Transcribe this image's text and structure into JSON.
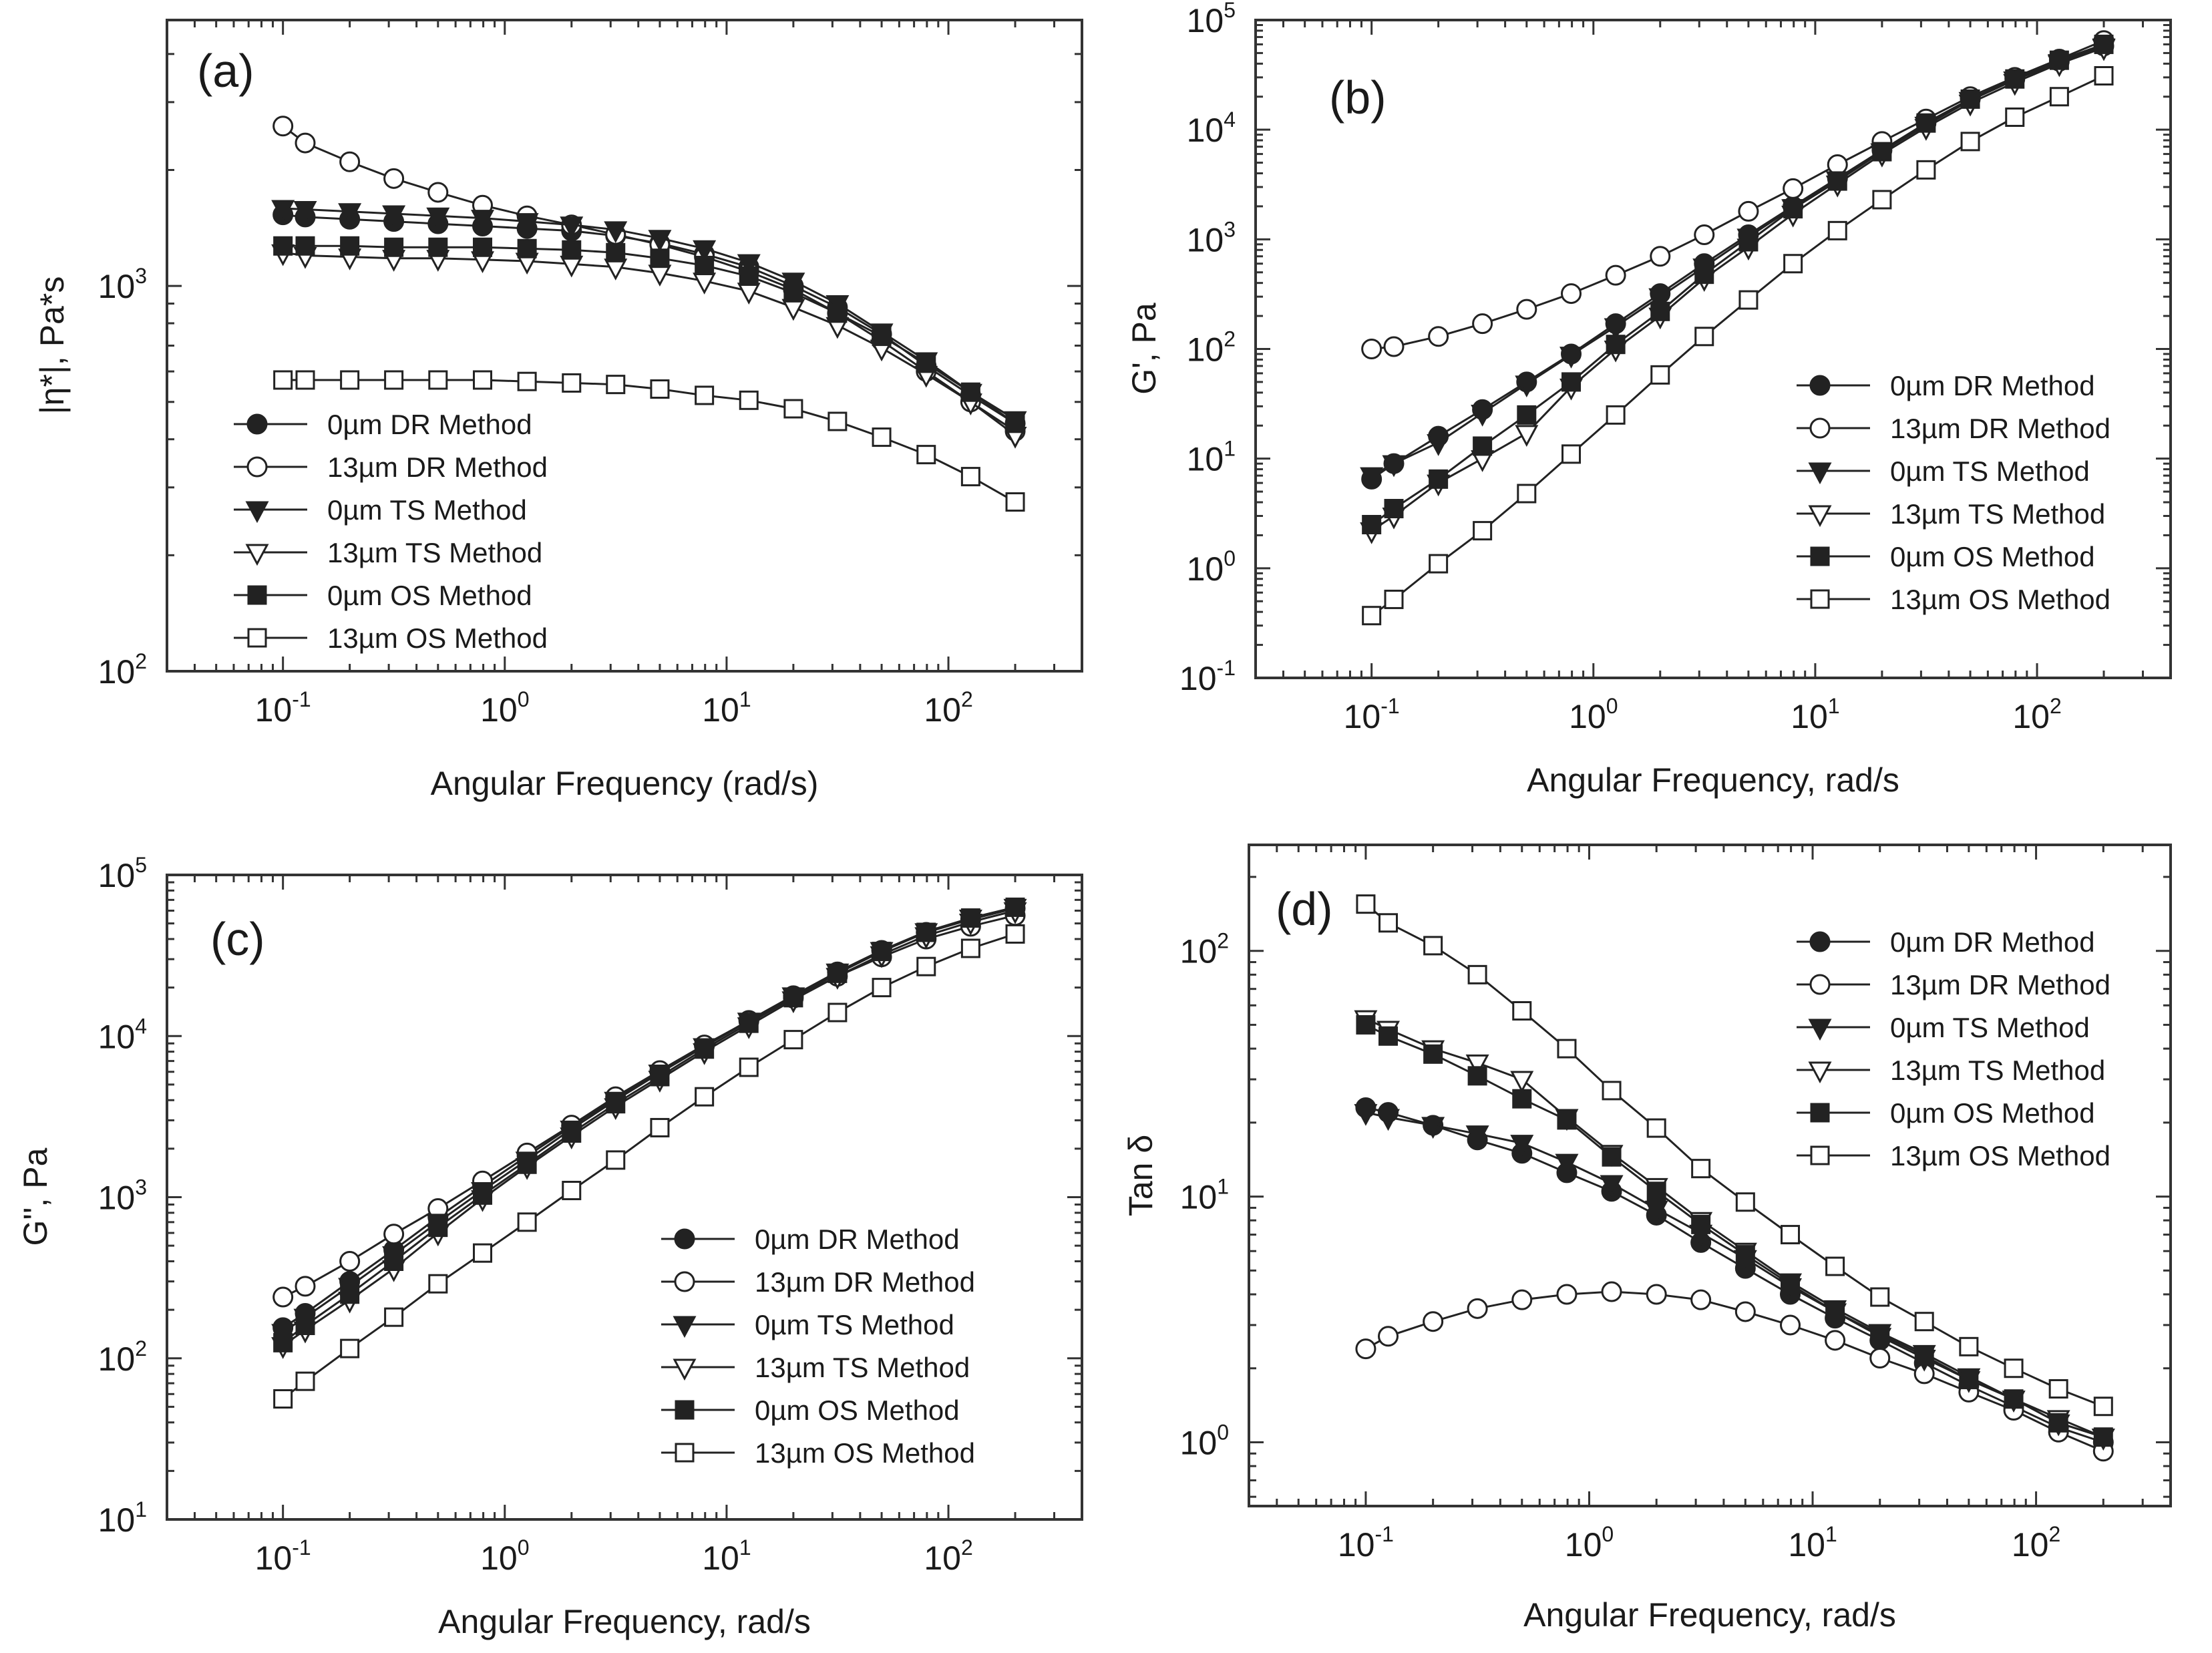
{
  "legend_labels": [
    "0µm DR Method",
    "13µm DR Method",
    "0µm TS Method",
    "13µm TS Method",
    "0µm OS Method",
    "13µm OS Method"
  ],
  "series_markers": [
    "circle-filled",
    "circle-open",
    "triangle-down-filled",
    "triangle-down-open",
    "square-filled",
    "square-open"
  ],
  "colors": {
    "ink": "#222222",
    "frame": "#333333",
    "background": "#ffffff",
    "open_fill": "#ffffff"
  },
  "chart_data": [
    {
      "type": "line",
      "panel": "(a)",
      "xscale": "log",
      "yscale": "log",
      "xlabel": "Angular Frequency (rad/s)",
      "ylabel": "|η*|, Pa*s",
      "xlim": [
        0.03,
        400
      ],
      "ylim": [
        100,
        4900
      ],
      "xticks": [
        {
          "base": "10",
          "exp": "-1",
          "value": 0.1
        },
        {
          "base": "10",
          "exp": "0",
          "value": 1
        },
        {
          "base": "10",
          "exp": "1",
          "value": 10
        },
        {
          "base": "10",
          "exp": "2",
          "value": 100
        }
      ],
      "yticks": [
        {
          "base": "10",
          "exp": "2",
          "value": 100
        },
        {
          "base": "10",
          "exp": "3",
          "value": 1000
        }
      ],
      "x": [
        0.1,
        0.126,
        0.2,
        0.316,
        0.5,
        0.794,
        1.26,
        2,
        3.16,
        5,
        7.94,
        12.6,
        20,
        31.6,
        50,
        79.4,
        126,
        200
      ],
      "series": [
        {
          "name": "0µm DR Method",
          "values": [
            1530,
            1510,
            1490,
            1470,
            1450,
            1430,
            1410,
            1390,
            1350,
            1290,
            1210,
            1120,
            1000,
            880,
            750,
            620,
            520,
            440
          ]
        },
        {
          "name": "13µm DR Method",
          "values": [
            2600,
            2350,
            2100,
            1900,
            1750,
            1620,
            1520,
            1440,
            1360,
            1280,
            1190,
            1090,
            980,
            850,
            720,
            600,
            500,
            420
          ]
        },
        {
          "name": "0µm TS Method",
          "values": [
            1590,
            1580,
            1560,
            1540,
            1520,
            1500,
            1470,
            1440,
            1400,
            1330,
            1250,
            1150,
            1030,
            900,
            760,
            640,
            530,
            450
          ]
        },
        {
          "name": "13µm TS Method",
          "values": [
            1220,
            1200,
            1190,
            1180,
            1180,
            1170,
            1160,
            1140,
            1120,
            1080,
            1030,
            970,
            880,
            790,
            690,
            590,
            500,
            410
          ]
        },
        {
          "name": "0µm OS Method",
          "values": [
            1270,
            1270,
            1270,
            1260,
            1260,
            1260,
            1250,
            1240,
            1220,
            1180,
            1130,
            1060,
            960,
            850,
            740,
            630,
            530,
            440
          ]
        },
        {
          "name": "13µm OS Method",
          "values": [
            570,
            570,
            570,
            570,
            570,
            570,
            565,
            560,
            555,
            540,
            520,
            505,
            480,
            445,
            405,
            365,
            320,
            275
          ]
        }
      ]
    },
    {
      "type": "line",
      "panel": "(b)",
      "xscale": "log",
      "yscale": "log",
      "xlabel": "Angular Frequency, rad/s",
      "ylabel": "G', Pa",
      "xlim": [
        0.03,
        400
      ],
      "ylim": [
        0.1,
        100000
      ],
      "xticks": [
        {
          "base": "10",
          "exp": "-1",
          "value": 0.1
        },
        {
          "base": "10",
          "exp": "0",
          "value": 1
        },
        {
          "base": "10",
          "exp": "1",
          "value": 10
        },
        {
          "base": "10",
          "exp": "2",
          "value": 100
        }
      ],
      "yticks": [
        {
          "base": "10",
          "exp": "-1",
          "value": 0.1
        },
        {
          "base": "10",
          "exp": "0",
          "value": 1
        },
        {
          "base": "10",
          "exp": "1",
          "value": 10
        },
        {
          "base": "10",
          "exp": "2",
          "value": 100
        },
        {
          "base": "10",
          "exp": "3",
          "value": 1000
        },
        {
          "base": "10",
          "exp": "4",
          "value": 10000
        },
        {
          "base": "10",
          "exp": "5",
          "value": 100000
        }
      ],
      "x": [
        0.1,
        0.126,
        0.2,
        0.316,
        0.5,
        0.794,
        1.26,
        2,
        3.16,
        5,
        7.94,
        12.6,
        20,
        31.6,
        50,
        79.4,
        126,
        200
      ],
      "series": [
        {
          "name": "0µm DR Method",
          "values": [
            6.5,
            9,
            16,
            28,
            50,
            90,
            170,
            320,
            600,
            1100,
            2000,
            3600,
            6500,
            11500,
            19000,
            29000,
            42000,
            58000
          ]
        },
        {
          "name": "13µm DR Method",
          "values": [
            100,
            105,
            130,
            170,
            230,
            320,
            470,
            700,
            1100,
            1800,
            2900,
            4800,
            7800,
            12500,
            20000,
            30000,
            44000,
            65000
          ]
        },
        {
          "name": "0µm TS Method",
          "values": [
            7,
            9,
            14,
            26,
            48,
            88,
            160,
            300,
            560,
            1050,
            1950,
            3500,
            6300,
            11000,
            18500,
            28500,
            41000,
            57000
          ]
        },
        {
          "name": "13µm TS Method",
          "values": [
            2.2,
            3,
            6,
            10,
            17,
            45,
            100,
            200,
            440,
            850,
            1700,
            3200,
            6000,
            10500,
            17500,
            27000,
            40000,
            56000
          ]
        },
        {
          "name": "0µm OS Method",
          "values": [
            2.5,
            3.5,
            6.5,
            13,
            25,
            50,
            110,
            220,
            480,
            950,
            1900,
            3400,
            6300,
            11500,
            19000,
            29000,
            43000,
            60000
          ]
        },
        {
          "name": "13µm OS Method",
          "values": [
            0.37,
            0.52,
            1.1,
            2.2,
            4.8,
            11,
            25,
            58,
            130,
            280,
            600,
            1200,
            2300,
            4300,
            7800,
            13000,
            20000,
            31000
          ]
        }
      ]
    },
    {
      "type": "line",
      "panel": "(c)",
      "xscale": "log",
      "yscale": "log",
      "xlabel": "Angular Frequency, rad/s",
      "ylabel": "G'', Pa",
      "xlim": [
        0.03,
        400
      ],
      "ylim": [
        10,
        100000
      ],
      "xticks": [
        {
          "base": "10",
          "exp": "-1",
          "value": 0.1
        },
        {
          "base": "10",
          "exp": "0",
          "value": 1
        },
        {
          "base": "10",
          "exp": "1",
          "value": 10
        },
        {
          "base": "10",
          "exp": "2",
          "value": 100
        }
      ],
      "yticks": [
        {
          "base": "10",
          "exp": "1",
          "value": 10
        },
        {
          "base": "10",
          "exp": "2",
          "value": 100
        },
        {
          "base": "10",
          "exp": "3",
          "value": 1000
        },
        {
          "base": "10",
          "exp": "4",
          "value": 10000
        },
        {
          "base": "10",
          "exp": "5",
          "value": 100000
        }
      ],
      "x": [
        0.1,
        0.126,
        0.2,
        0.316,
        0.5,
        0.794,
        1.26,
        2,
        3.16,
        5,
        7.94,
        12.6,
        20,
        31.6,
        50,
        79.4,
        126,
        200
      ],
      "series": [
        {
          "name": "0µm DR Method",
          "values": [
            155,
            190,
            300,
            470,
            750,
            1170,
            1800,
            2750,
            4100,
            6000,
            8700,
            12500,
            17800,
            25000,
            34000,
            44000,
            53000,
            62000
          ]
        },
        {
          "name": "13µm DR Method",
          "values": [
            240,
            280,
            400,
            590,
            850,
            1260,
            1880,
            2800,
            4200,
            6100,
            8800,
            12400,
            17200,
            23500,
            31000,
            40000,
            48000,
            56000
          ]
        },
        {
          "name": "0µm TS Method",
          "values": [
            145,
            180,
            280,
            440,
            700,
            1100,
            1700,
            2650,
            4000,
            5900,
            8600,
            12400,
            17800,
            25000,
            34000,
            44500,
            54000,
            63000
          ]
        },
        {
          "name": "13µm TS Method",
          "values": [
            120,
            150,
            230,
            360,
            600,
            980,
            1550,
            2400,
            3650,
            5400,
            8000,
            11600,
            16800,
            23500,
            32000,
            42000,
            51000,
            60000
          ]
        },
        {
          "name": "0µm OS Method",
          "values": [
            125,
            160,
            250,
            400,
            650,
            1030,
            1600,
            2500,
            3800,
            5600,
            8300,
            12000,
            17300,
            24500,
            33500,
            44000,
            54000,
            63000
          ]
        },
        {
          "name": "13µm OS Method",
          "values": [
            56,
            72,
            115,
            180,
            290,
            450,
            700,
            1100,
            1700,
            2700,
            4200,
            6400,
            9500,
            14000,
            20000,
            27000,
            35000,
            43000
          ]
        }
      ]
    },
    {
      "type": "line",
      "panel": "(d)",
      "xscale": "log",
      "yscale": "log",
      "xlabel": "Angular Frequency, rad/s",
      "ylabel": "Tan δ",
      "xlim": [
        0.03,
        400
      ],
      "ylim": [
        0.55,
        270
      ],
      "xticks": [
        {
          "base": "10",
          "exp": "-1",
          "value": 0.1
        },
        {
          "base": "10",
          "exp": "0",
          "value": 1
        },
        {
          "base": "10",
          "exp": "1",
          "value": 10
        },
        {
          "base": "10",
          "exp": "2",
          "value": 100
        }
      ],
      "yticks": [
        {
          "base": "10",
          "exp": "0",
          "value": 1
        },
        {
          "base": "10",
          "exp": "1",
          "value": 10
        },
        {
          "base": "10",
          "exp": "2",
          "value": 100
        }
      ],
      "x": [
        0.1,
        0.126,
        0.2,
        0.316,
        0.5,
        0.794,
        1.26,
        2,
        3.16,
        5,
        7.94,
        12.6,
        20,
        31.6,
        50,
        79.4,
        126,
        200
      ],
      "series": [
        {
          "name": "0µm DR Method",
          "values": [
            23,
            22,
            19.5,
            17,
            15,
            12.5,
            10.5,
            8.4,
            6.5,
            5.1,
            4,
            3.2,
            2.6,
            2.1,
            1.7,
            1.4,
            1.15,
            1.0
          ]
        },
        {
          "name": "13µm DR Method",
          "values": [
            2.4,
            2.7,
            3.1,
            3.5,
            3.8,
            4.0,
            4.1,
            4.0,
            3.8,
            3.4,
            3.0,
            2.6,
            2.2,
            1.9,
            1.6,
            1.35,
            1.1,
            0.92
          ]
        },
        {
          "name": "0µm TS Method",
          "values": [
            22,
            21,
            19.5,
            18,
            16.5,
            13.8,
            11.3,
            8.9,
            7.1,
            5.6,
            4.3,
            3.4,
            2.7,
            2.2,
            1.8,
            1.5,
            1.2,
            1.05
          ]
        },
        {
          "name": "13µm TS Method",
          "values": [
            53,
            48,
            40,
            35,
            30,
            21,
            15,
            11,
            8.0,
            6.0,
            4.5,
            3.5,
            2.8,
            2.3,
            1.85,
            1.5,
            1.25,
            1.05
          ]
        },
        {
          "name": "0µm OS Method",
          "values": [
            50,
            45,
            38,
            31,
            25,
            20.5,
            14.5,
            10.5,
            7.7,
            5.8,
            4.4,
            3.4,
            2.75,
            2.25,
            1.8,
            1.5,
            1.2,
            1.05
          ]
        },
        {
          "name": "13µm OS Method",
          "values": [
            155,
            130,
            105,
            80,
            57,
            40,
            27,
            19,
            13,
            9.5,
            7,
            5.2,
            3.9,
            3.1,
            2.45,
            2.0,
            1.65,
            1.4
          ]
        }
      ]
    }
  ]
}
